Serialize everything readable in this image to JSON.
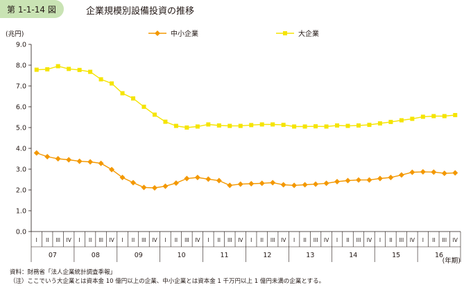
{
  "figure_number": "第 1-1-14 図",
  "title": "企業規模別設備投資の推移",
  "notes": {
    "source": "資料：財務省「法人企業統計調査季報」",
    "note": "（注）ここでいう大企業とは資本金 10 億円以上の企業、中小企業とは資本金 1 千万円以上 1 億円未満の企業とする。"
  },
  "colors": {
    "sme": "#f39800",
    "large": "#f5e400",
    "axis": "#231815",
    "badge": "#c9e3b4"
  },
  "chart_data": {
    "type": "line",
    "ylabel": "(兆円)",
    "xlabel": "(年期)",
    "ylim": [
      0,
      9
    ],
    "yticks": [
      "0.0",
      "1.0",
      "2.0",
      "3.0",
      "4.0",
      "5.0",
      "6.0",
      "7.0",
      "8.0",
      "9.0"
    ],
    "quarter_labels": [
      "I",
      "II",
      "III",
      "IV"
    ],
    "years": [
      "07",
      "08",
      "09",
      "10",
      "11",
      "12",
      "13",
      "14",
      "15",
      "16"
    ],
    "legend_position": "top",
    "series": [
      {
        "name": "中小企業",
        "marker": "diamond",
        "values": [
          3.78,
          3.6,
          3.5,
          3.45,
          3.38,
          3.35,
          3.28,
          2.98,
          2.6,
          2.35,
          2.12,
          2.1,
          2.18,
          2.33,
          2.55,
          2.6,
          2.52,
          2.45,
          2.22,
          2.28,
          2.3,
          2.32,
          2.35,
          2.25,
          2.22,
          2.25,
          2.28,
          2.32,
          2.4,
          2.45,
          2.48,
          2.48,
          2.55,
          2.6,
          2.72,
          2.85,
          2.87,
          2.86,
          2.8,
          2.82
        ]
      },
      {
        "name": "大企業",
        "marker": "square",
        "values": [
          7.78,
          7.8,
          7.95,
          7.82,
          7.77,
          7.68,
          7.32,
          7.12,
          6.65,
          6.4,
          6.0,
          5.62,
          5.28,
          5.08,
          5.0,
          5.05,
          5.15,
          5.1,
          5.08,
          5.08,
          5.12,
          5.15,
          5.15,
          5.13,
          5.05,
          5.05,
          5.06,
          5.05,
          5.1,
          5.08,
          5.1,
          5.13,
          5.2,
          5.27,
          5.35,
          5.42,
          5.52,
          5.55,
          5.55,
          5.6
        ]
      }
    ]
  }
}
